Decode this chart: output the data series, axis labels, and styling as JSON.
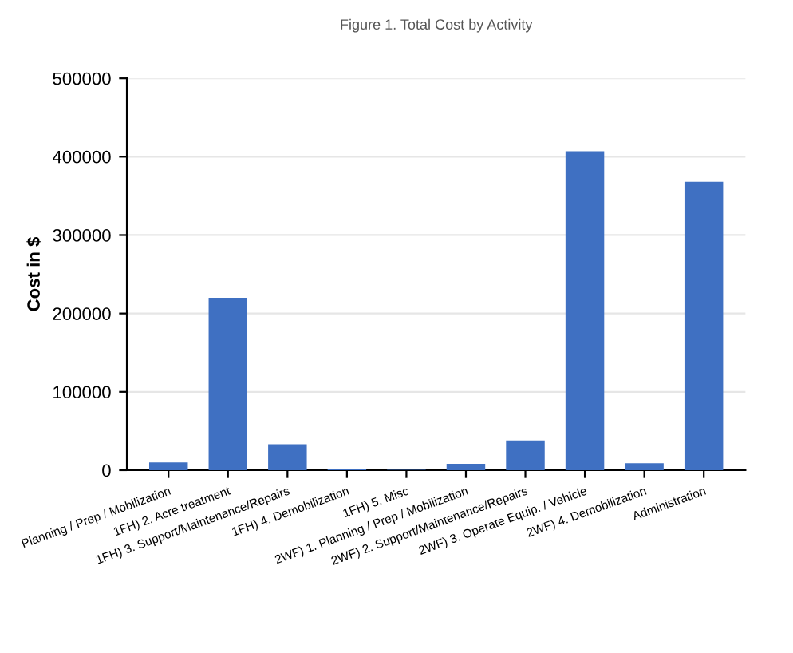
{
  "chart_data": {
    "type": "bar",
    "title": "Figure 1. Total Cost by Activity",
    "ylabel": "Cost in $",
    "categories": [
      "Planning / Prep / Mobilization",
      "1FH) 2. Acre treatment",
      "1FH) 3. Support/Maintenance/Repairs",
      "1FH) 4. Demobilization",
      "1FH) 5. Misc",
      "2WF) 1. Planning / Prep / Mobilization",
      "2WF) 2. Support/Maintenance/Repairs",
      "2WF) 3. Operate Equip. / Vehicle",
      "2WF) 4. Demobilization",
      "Administration"
    ],
    "values": [
      10000,
      220000,
      33000,
      2000,
      500,
      8000,
      38000,
      407000,
      9000,
      368000
    ],
    "color": "#3f70c2",
    "ylim": [
      0,
      500000
    ],
    "yticks": [
      0,
      100000,
      200000,
      300000,
      400000,
      500000
    ],
    "grid": "y"
  }
}
